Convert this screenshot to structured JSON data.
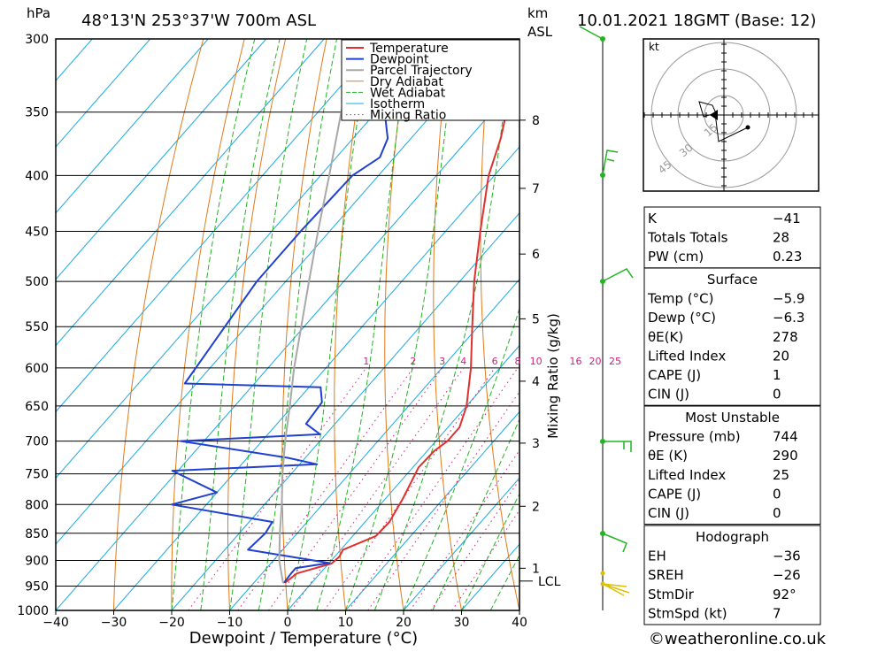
{
  "header": {
    "unit_left": "hPa",
    "location": "48°13'N  253°37'W  700m  ASL",
    "unit_km": "km",
    "unit_asl": "ASL",
    "datetime": "10.01.2021  18GMT  (Base: 12)"
  },
  "chart_data": {
    "type": "skew-t log-p",
    "title": "48°13'N  253°37'W  700m  ASL",
    "xlabel": "Dewpoint / Temperature (°C)",
    "ylabel": "hPa",
    "y2label": "Mixing Ratio (g/kg)",
    "xlim": [
      -40,
      40
    ],
    "ylim": [
      1000,
      300
    ],
    "pressure_levels": [
      300,
      350,
      400,
      450,
      500,
      550,
      600,
      650,
      700,
      750,
      800,
      850,
      900,
      950,
      1000
    ],
    "x_ticks": [
      "−40",
      "−30",
      "−20",
      "−10",
      "0",
      "10",
      "20",
      "30",
      "40"
    ],
    "x_tick_values": [
      -40,
      -30,
      -20,
      -10,
      0,
      10,
      20,
      30,
      40
    ],
    "km_ticks": [
      {
        "label": "8",
        "p": 356
      },
      {
        "label": "7",
        "p": 411
      },
      {
        "label": "6",
        "p": 472
      },
      {
        "label": "5",
        "p": 541
      },
      {
        "label": "4",
        "p": 617
      },
      {
        "label": "3",
        "p": 703
      },
      {
        "label": "2",
        "p": 803
      },
      {
        "label": "1",
        "p": 915
      }
    ],
    "lcl": {
      "label": "LCL",
      "p": 940
    },
    "mixing_ratio_labels": [
      "1",
      "2",
      "3",
      "4",
      "6",
      "8",
      "10",
      "16",
      "20",
      "25"
    ],
    "mixing_ratio_values": [
      1,
      2,
      3,
      4,
      6,
      8,
      10,
      16,
      20,
      25
    ],
    "legend": [
      "Temperature",
      "Dewpoint",
      "Parcel Trajectory",
      "Dry Adiabat",
      "Wet Adiabat",
      "Isotherm",
      "Mixing Ratio"
    ],
    "legend_colors": [
      "#e03030",
      "#2040d0",
      "#a8a8a8",
      "#e07a1a",
      "#22b422",
      "#1aa8e0",
      "#d0207a"
    ],
    "series": [
      {
        "name": "Temperature",
        "color": "#e03030",
        "points": [
          {
            "p": 943,
            "t": -4.6
          },
          {
            "p": 925,
            "t": -4.0
          },
          {
            "p": 906,
            "t": 0.5
          },
          {
            "p": 893,
            "t": 0.8
          },
          {
            "p": 880,
            "t": 0.4
          },
          {
            "p": 855,
            "t": 4.0
          },
          {
            "p": 830,
            "t": 4.2
          },
          {
            "p": 790,
            "t": 3.0
          },
          {
            "p": 740,
            "t": 1.0
          },
          {
            "p": 715,
            "t": 1.2
          },
          {
            "p": 700,
            "t": 2.0
          },
          {
            "p": 680,
            "t": 2.0
          },
          {
            "p": 650,
            "t": 0.0
          },
          {
            "p": 600,
            "t": -5.0
          },
          {
            "p": 550,
            "t": -11.0
          },
          {
            "p": 500,
            "t": -17.5
          },
          {
            "p": 450,
            "t": -24.0
          },
          {
            "p": 400,
            "t": -31.0
          },
          {
            "p": 370,
            "t": -34.5
          },
          {
            "p": 350,
            "t": -37.5
          },
          {
            "p": 330,
            "t": -41.0
          },
          {
            "p": 310,
            "t": -44.5
          },
          {
            "p": 300,
            "t": -45.5
          }
        ]
      },
      {
        "name": "Dewpoint",
        "color": "#2040d0",
        "points": [
          {
            "p": 943,
            "t": -4.8
          },
          {
            "p": 925,
            "t": -5.0
          },
          {
            "p": 915,
            "t": -5.0
          },
          {
            "p": 905,
            "t": 0.0
          },
          {
            "p": 880,
            "t": -16.0
          },
          {
            "p": 850,
            "t": -15.5
          },
          {
            "p": 830,
            "t": -16.0
          },
          {
            "p": 800,
            "t": -36.0
          },
          {
            "p": 780,
            "t": -30.0
          },
          {
            "p": 745,
            "t": -41.0
          },
          {
            "p": 735,
            "t": -17.0
          },
          {
            "p": 725,
            "t": -23.0
          },
          {
            "p": 700,
            "t": -44.0
          },
          {
            "p": 690,
            "t": -21.0
          },
          {
            "p": 675,
            "t": -25.0
          },
          {
            "p": 645,
            "t": -25.5
          },
          {
            "p": 625,
            "t": -28.0
          },
          {
            "p": 620,
            "t": -52.0
          },
          {
            "p": 500,
            "t": -55.0
          },
          {
            "p": 450,
            "t": -55.0
          },
          {
            "p": 400,
            "t": -54.5
          },
          {
            "p": 385,
            "t": -52.5
          },
          {
            "p": 370,
            "t": -54.0
          },
          {
            "p": 350,
            "t": -58.5
          },
          {
            "p": 320,
            "t": -59.0
          },
          {
            "p": 300,
            "t": -64.0
          }
        ]
      },
      {
        "name": "Parcel Trajectory",
        "color": "#a8a8a8",
        "points": [
          {
            "p": 943,
            "t": -5.0
          },
          {
            "p": 900,
            "t": -9.0
          },
          {
            "p": 850,
            "t": -13.0
          },
          {
            "p": 800,
            "t": -17.0
          },
          {
            "p": 750,
            "t": -21.5
          },
          {
            "p": 700,
            "t": -26.0
          },
          {
            "p": 650,
            "t": -30.5
          },
          {
            "p": 600,
            "t": -35.5
          },
          {
            "p": 550,
            "t": -40.5
          },
          {
            "p": 500,
            "t": -46.0
          },
          {
            "p": 450,
            "t": -52.0
          },
          {
            "p": 400,
            "t": -58.5
          },
          {
            "p": 350,
            "t": -66.0
          },
          {
            "p": 300,
            "t": -74.0
          }
        ]
      }
    ]
  },
  "hodograph": {
    "unit": "kt",
    "ring_labels": [
      "15",
      "30",
      "45"
    ]
  },
  "indices": {
    "general": [
      {
        "label": "K",
        "value": "−41"
      },
      {
        "label": "Totals Totals",
        "value": "28"
      },
      {
        "label": "PW (cm)",
        "value": "0.23"
      }
    ],
    "surface_title": "Surface",
    "surface": [
      {
        "label": "Temp (°C)",
        "value": "−5.9"
      },
      {
        "label": "Dewp (°C)",
        "value": "−6.3"
      },
      {
        "label": "θE(K)",
        "value": "278"
      },
      {
        "label": "Lifted Index",
        "value": "20"
      },
      {
        "label": "CAPE (J)",
        "value": "1"
      },
      {
        "label": "CIN (J)",
        "value": "0"
      }
    ],
    "mu_title": "Most Unstable",
    "most_unstable": [
      {
        "label": "Pressure (mb)",
        "value": "744"
      },
      {
        "label": "θE (K)",
        "value": "290"
      },
      {
        "label": "Lifted Index",
        "value": "25"
      },
      {
        "label": "CAPE (J)",
        "value": "0"
      },
      {
        "label": "CIN (J)",
        "value": "0"
      }
    ],
    "hodo_title": "Hodograph",
    "hodograph": [
      {
        "label": "EH",
        "value": "−36"
      },
      {
        "label": "SREH",
        "value": "−26"
      },
      {
        "label": "StmDir",
        "value": "92°"
      },
      {
        "label": "StmSpd (kt)",
        "value": "7"
      }
    ]
  },
  "footer": {
    "copyright": "©weatheronline.co.uk"
  }
}
